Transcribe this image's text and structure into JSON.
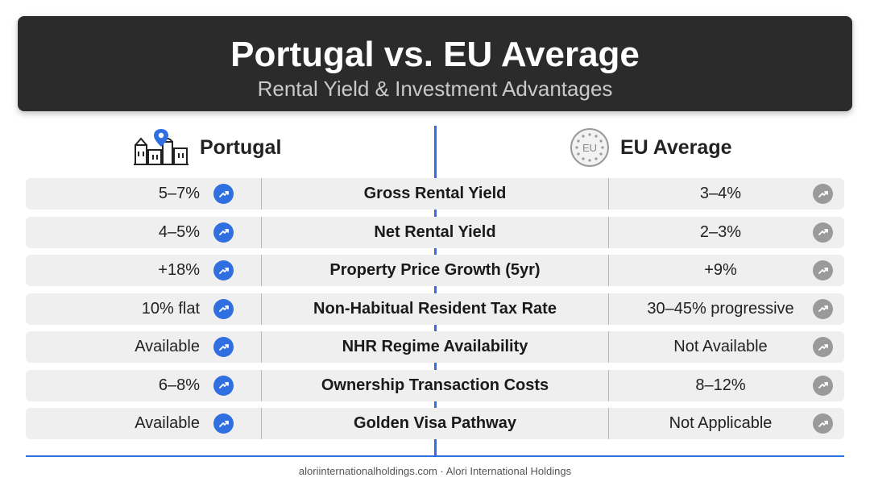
{
  "header": {
    "title": "Portugal vs. EU Average",
    "subtitle": "Rental Yield & Investment Advantages"
  },
  "columns": {
    "portugal": {
      "label": "Portugal",
      "icon": "city-location-pin-icon"
    },
    "eu": {
      "label": "EU Average",
      "icon": "eu-stars-icon",
      "badge": "EU"
    }
  },
  "colors": {
    "accent": "#2f6fe0",
    "neutral": "#9a9a9a",
    "header_bg": "#2b2b2b"
  },
  "rows": [
    {
      "portugal": "5–7%",
      "metric": "Gross Rental Yield",
      "eu": "3–4%"
    },
    {
      "portugal": "4–5%",
      "metric": "Net Rental Yield",
      "eu": "2–3%"
    },
    {
      "portugal": "+18%",
      "metric": "Property Price Growth (5yr)",
      "eu": "+9%"
    },
    {
      "portugal": "10% flat",
      "metric": "Non-Habitual Resident Tax Rate",
      "eu": "30–45% progressive"
    },
    {
      "portugal": "Available",
      "metric": "NHR Regime Availability",
      "eu": "Not Available"
    },
    {
      "portugal": "6–8%",
      "metric": "Ownership Transaction Costs",
      "eu": "8–12%"
    },
    {
      "portugal": "Available",
      "metric": "Golden Visa Pathway",
      "eu": "Not Applicable"
    }
  ],
  "footer": "aloriinternationalholdings.com · Alori International Holdings"
}
